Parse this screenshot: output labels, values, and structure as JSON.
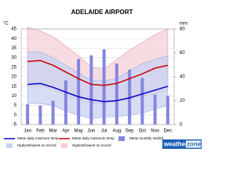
{
  "chart_data": {
    "type": "climate",
    "title": "ADELAIDE AIRPORT",
    "y_label": "°C",
    "y2_label": "mm",
    "categories": [
      "Jan",
      "Feb",
      "Mar",
      "Apr",
      "May",
      "Jun",
      "Jul",
      "Aug",
      "Sep",
      "Oct",
      "Nov",
      "Dec"
    ],
    "ylim": [
      -5,
      45
    ],
    "yticks": [
      -5,
      0,
      5,
      10,
      15,
      20,
      25,
      30,
      35,
      40,
      45
    ],
    "y2lim": [
      0,
      80
    ],
    "y2ticks": [
      0,
      20,
      40,
      60,
      80
    ],
    "grid": true,
    "ranges": [
      {
        "name": "Highest/lowest on record",
        "color": "#f4d0d8",
        "stroke": "#e3a0b0",
        "high": [
          46,
          44,
          41,
          36,
          31,
          25,
          24,
          29,
          34,
          38,
          42,
          45
        ],
        "low": [
          15,
          15,
          13,
          10,
          8,
          6,
          6,
          7,
          8,
          10,
          11,
          13
        ]
      },
      {
        "name": "Highest/lowest on record",
        "color": "#c9d2f2",
        "stroke": "#a0acdc",
        "high": [
          33,
          33,
          30,
          26,
          22,
          18,
          18,
          19,
          23,
          27,
          29,
          31
        ],
        "low": [
          6,
          6,
          5,
          2,
          0,
          -2,
          -1,
          -1,
          0,
          1,
          3,
          5
        ]
      }
    ],
    "series": [
      {
        "name": "Mean monthly rainfall",
        "type": "bar",
        "axis": "y2",
        "color": "#8585e0",
        "values": [
          17,
          16,
          20,
          37,
          55,
          58,
          63,
          51,
          46,
          39,
          25,
          24
        ]
      },
      {
        "name": "Mean daily minimum temp",
        "type": "line",
        "color": "#0000cc",
        "values": [
          16,
          16.5,
          14.5,
          12,
          9.5,
          8,
          7,
          7.5,
          9,
          11,
          13,
          15
        ]
      },
      {
        "name": "Mean daily maximum temp",
        "type": "line",
        "color": "#cc0000",
        "values": [
          28,
          28.5,
          26,
          22.5,
          19,
          16,
          15.5,
          16.5,
          19,
          21.5,
          24.5,
          26
        ]
      }
    ],
    "logo": [
      "weather",
      "zone"
    ]
  }
}
